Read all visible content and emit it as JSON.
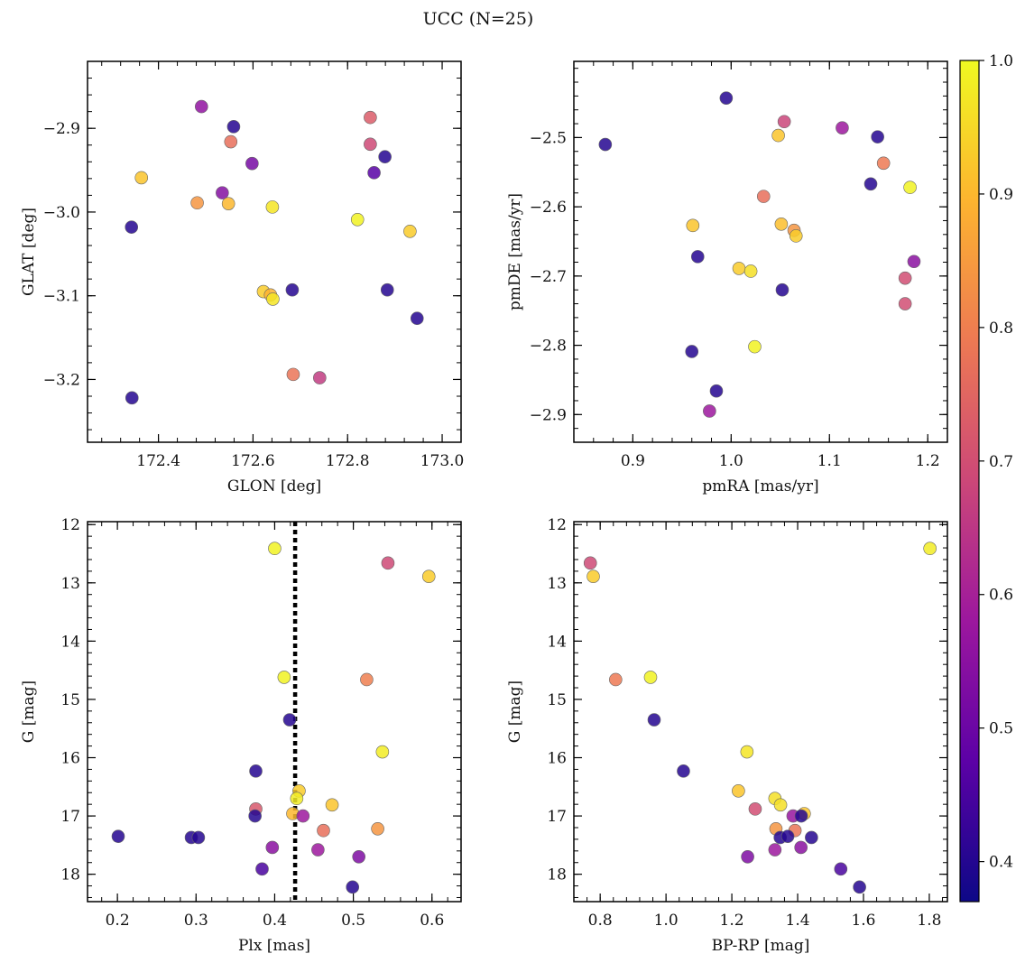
{
  "figure": {
    "title": "UCC (N=25)",
    "colorbar": {
      "range": [
        0.37,
        1.0
      ],
      "ticks": [
        0.4,
        0.5,
        0.6,
        0.7,
        0.8,
        0.9,
        1.0
      ],
      "tick_labels": [
        "0.4",
        "0.5",
        "0.6",
        "0.7",
        "0.8",
        "0.9",
        "1.0"
      ],
      "colormap": "plasma"
    },
    "colors": {
      "plasma": [
        "#0d0887",
        "#5c01a6",
        "#9c179e",
        "#cc4778",
        "#ed7953",
        "#fdb42f",
        "#f0f921"
      ],
      "frame": "#000000",
      "reference_line": "#000000"
    }
  },
  "chart_data": [
    {
      "type": "scatter",
      "xlabel": "GLON [deg]",
      "ylabel": "GLAT [deg]",
      "xlim": [
        172.25,
        173.04
      ],
      "ylim": [
        -3.275,
        -2.82
      ],
      "y_inverted": false,
      "xticks": [
        172.4,
        172.6,
        172.8,
        173.0
      ],
      "xtick_labels": [
        "172.4",
        "172.6",
        "172.8",
        "173.0"
      ],
      "yticks": [
        -3.2,
        -3.1,
        -3.0,
        -2.9
      ],
      "ytick_labels": [
        "−3.2",
        "−3.1",
        "−3.0",
        "−2.9"
      ],
      "x": [
        172.491,
        172.559,
        172.553,
        172.848,
        172.848,
        172.879,
        172.856,
        172.598,
        172.364,
        172.535,
        172.482,
        172.548,
        172.641,
        172.821,
        172.932,
        172.343,
        172.622,
        172.683,
        172.884,
        172.637,
        172.642,
        172.947,
        172.685,
        172.741,
        172.344
      ],
      "y": [
        -2.874,
        -2.898,
        -2.916,
        -2.887,
        -2.919,
        -2.934,
        -2.953,
        -2.942,
        -2.959,
        -2.977,
        -2.989,
        -2.99,
        -2.994,
        -3.009,
        -3.023,
        -3.018,
        -3.095,
        -3.093,
        -3.093,
        -3.099,
        -3.104,
        -3.127,
        -3.194,
        -3.198,
        -3.222
      ],
      "c": [
        0.56,
        0.4,
        0.77,
        0.73,
        0.69,
        0.4,
        0.47,
        0.52,
        0.92,
        0.54,
        0.84,
        0.9,
        0.97,
        0.99,
        0.93,
        0.4,
        0.93,
        0.4,
        0.4,
        0.89,
        0.97,
        0.4,
        0.78,
        0.66,
        0.4
      ]
    },
    {
      "type": "scatter",
      "xlabel": "pmRA [mas/yr]",
      "ylabel": "pmDE [mas/yr]",
      "xlim": [
        0.84,
        1.22
      ],
      "ylim": [
        -2.94,
        -2.39
      ],
      "y_inverted": false,
      "xticks": [
        0.9,
        1.0,
        1.1,
        1.2
      ],
      "xtick_labels": [
        "0.9",
        "1.0",
        "1.1",
        "1.2"
      ],
      "yticks": [
        -2.9,
        -2.8,
        -2.7,
        -2.6,
        -2.5
      ],
      "ytick_labels": [
        "−2.9",
        "−2.8",
        "−2.7",
        "−2.6",
        "−2.5"
      ],
      "x": [
        0.995,
        1.054,
        1.113,
        0.872,
        1.048,
        1.149,
        1.155,
        1.142,
        1.182,
        1.033,
        0.961,
        1.051,
        1.064,
        1.066,
        0.966,
        1.008,
        1.02,
        1.186,
        1.177,
        1.052,
        1.177,
        1.024,
        0.96,
        0.985,
        0.978
      ],
      "y": [
        -2.443,
        -2.477,
        -2.486,
        -2.51,
        -2.497,
        -2.499,
        -2.537,
        -2.567,
        -2.572,
        -2.585,
        -2.627,
        -2.625,
        -2.634,
        -2.642,
        -2.672,
        -2.689,
        -2.693,
        -2.679,
        -2.703,
        -2.72,
        -2.74,
        -2.802,
        -2.809,
        -2.866,
        -2.895
      ],
      "c": [
        0.4,
        0.68,
        0.58,
        0.4,
        0.92,
        0.4,
        0.79,
        0.4,
        0.99,
        0.77,
        0.92,
        0.91,
        0.84,
        0.93,
        0.4,
        0.93,
        0.96,
        0.55,
        0.7,
        0.4,
        0.7,
        0.99,
        0.4,
        0.4,
        0.58
      ]
    },
    {
      "type": "scatter",
      "xlabel": "Plx [mas]",
      "ylabel": "G [mag]",
      "xlim": [
        0.162,
        0.637
      ],
      "ylim": [
        11.95,
        18.47
      ],
      "y_inverted": true,
      "vline": 0.426,
      "xticks": [
        0.2,
        0.3,
        0.4,
        0.5,
        0.6
      ],
      "xtick_labels": [
        "0.2",
        "0.3",
        "0.4",
        "0.5",
        "0.6"
      ],
      "yticks": [
        12,
        13,
        14,
        15,
        16,
        17,
        18
      ],
      "ytick_labels": [
        "12",
        "13",
        "14",
        "15",
        "16",
        "17",
        "18"
      ],
      "x": [
        0.4,
        0.544,
        0.596,
        0.412,
        0.517,
        0.419,
        0.537,
        0.376,
        0.431,
        0.473,
        0.428,
        0.376,
        0.423,
        0.375,
        0.436,
        0.531,
        0.462,
        0.201,
        0.294,
        0.303,
        0.397,
        0.455,
        0.507,
        0.384,
        0.499
      ],
      "y": [
        12.41,
        12.66,
        12.89,
        14.62,
        14.66,
        15.35,
        15.9,
        16.23,
        16.57,
        16.81,
        16.7,
        16.88,
        16.96,
        17.0,
        17.0,
        17.22,
        17.25,
        17.35,
        17.37,
        17.37,
        17.54,
        17.58,
        17.7,
        17.91,
        18.22
      ],
      "c": [
        0.99,
        0.69,
        0.93,
        0.99,
        0.8,
        0.4,
        0.98,
        0.4,
        0.93,
        0.92,
        0.98,
        0.72,
        0.9,
        0.4,
        0.58,
        0.84,
        0.77,
        0.4,
        0.4,
        0.4,
        0.55,
        0.58,
        0.53,
        0.45,
        0.4
      ]
    },
    {
      "type": "scatter",
      "xlabel": "BP-RP [mag]",
      "ylabel": "G [mag]",
      "xlim": [
        0.72,
        1.855
      ],
      "ylim": [
        11.95,
        18.47
      ],
      "y_inverted": true,
      "xticks": [
        0.8,
        1.0,
        1.2,
        1.4,
        1.6,
        1.8
      ],
      "xtick_labels": [
        "0.8",
        "1.0",
        "1.2",
        "1.4",
        "1.6",
        "1.8"
      ],
      "yticks": [
        12,
        13,
        14,
        15,
        16,
        17,
        18
      ],
      "ytick_labels": [
        "12",
        "13",
        "14",
        "15",
        "16",
        "17",
        "18"
      ],
      "x": [
        1.802,
        0.77,
        0.779,
        0.847,
        0.953,
        0.964,
        1.053,
        1.246,
        1.22,
        1.331,
        1.348,
        1.271,
        1.42,
        1.386,
        1.411,
        1.334,
        1.392,
        1.347,
        1.37,
        1.442,
        1.248,
        1.331,
        1.41,
        1.531,
        1.588
      ],
      "y": [
        12.41,
        12.66,
        12.89,
        14.66,
        14.62,
        15.35,
        16.23,
        15.9,
        16.57,
        16.7,
        16.81,
        16.88,
        16.96,
        17.0,
        17.0,
        17.22,
        17.25,
        17.37,
        17.35,
        17.37,
        17.7,
        17.58,
        17.54,
        17.91,
        18.22
      ],
      "c": [
        0.98,
        0.69,
        0.93,
        0.79,
        0.99,
        0.4,
        0.4,
        0.97,
        0.92,
        0.96,
        0.96,
        0.7,
        0.92,
        0.57,
        0.4,
        0.84,
        0.78,
        0.4,
        0.4,
        0.4,
        0.53,
        0.58,
        0.55,
        0.45,
        0.4
      ]
    }
  ]
}
